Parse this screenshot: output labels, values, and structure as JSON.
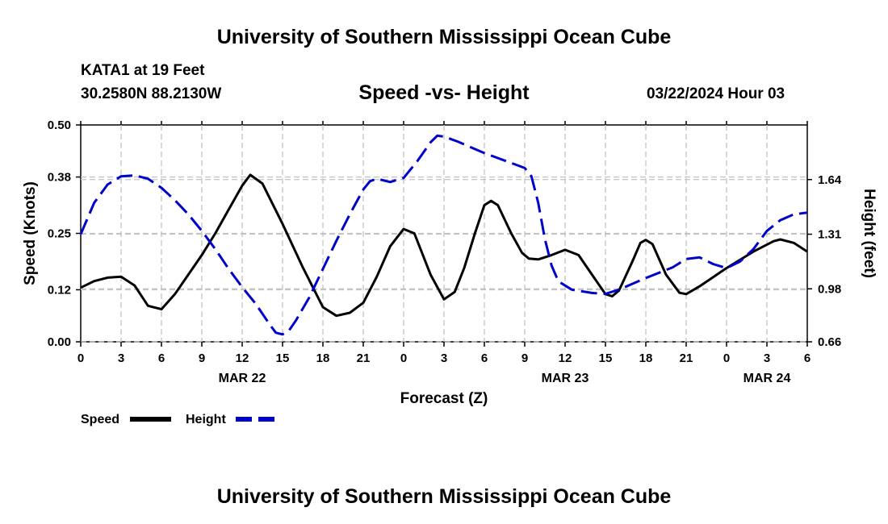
{
  "header": {
    "title": "University of Southern Mississippi Ocean Cube",
    "station": "KATA1 at 19 Feet",
    "coords": "30.2580N  88.2130W",
    "chart_title": "Speed -vs- Height",
    "datetime": "03/22/2024 Hour 03"
  },
  "footer": {
    "title": "University of Southern Mississippi Ocean Cube"
  },
  "chart_data": {
    "type": "line",
    "title": "Speed -vs- Height",
    "xlabel": "Forecast (Z)",
    "ylabel": "Speed (Knots)",
    "y2label": "Height (feet)",
    "xlim": [
      0,
      54
    ],
    "ylim": [
      0,
      0.5
    ],
    "y2lim": [
      0.66,
      1.97
    ],
    "x_ticks": [
      0,
      3,
      6,
      9,
      12,
      15,
      18,
      21,
      24,
      27,
      30,
      33,
      36,
      39,
      42,
      45,
      48,
      51,
      54
    ],
    "x_tick_labels": [
      "0",
      "3",
      "6",
      "9",
      "12",
      "15",
      "18",
      "21",
      "0",
      "3",
      "6",
      "9",
      "12",
      "15",
      "18",
      "21",
      "0",
      "3",
      "6"
    ],
    "date_labels": [
      {
        "x": 12,
        "label": "MAR 22"
      },
      {
        "x": 36,
        "label": "MAR 23"
      },
      {
        "x": 51,
        "label": "MAR 24"
      }
    ],
    "y_ticks": [
      0,
      0.12,
      0.25,
      0.38,
      0.5
    ],
    "y_tick_labels": [
      "0.00",
      "0.12",
      "0.25",
      "0.38",
      "0.50"
    ],
    "y2_ticks": [
      0.66,
      0.98,
      1.31,
      1.64
    ],
    "y2_tick_labels": [
      "0.66",
      "0.98",
      "1.31",
      "1.64"
    ],
    "grid": true,
    "legend_position": "bottom-left",
    "series": [
      {
        "name": "Speed",
        "axis": "left",
        "color": "#000000",
        "dash": "solid",
        "points": [
          [
            0,
            0.125
          ],
          [
            1,
            0.14
          ],
          [
            2,
            0.148
          ],
          [
            3,
            0.15
          ],
          [
            4,
            0.13
          ],
          [
            5,
            0.083
          ],
          [
            6,
            0.075
          ],
          [
            7,
            0.11
          ],
          [
            8,
            0.155
          ],
          [
            9,
            0.2
          ],
          [
            10,
            0.25
          ],
          [
            11,
            0.305
          ],
          [
            12,
            0.36
          ],
          [
            12.6,
            0.385
          ],
          [
            13.5,
            0.365
          ],
          [
            15,
            0.272
          ],
          [
            16.5,
            0.172
          ],
          [
            18,
            0.08
          ],
          [
            19,
            0.06
          ],
          [
            20,
            0.067
          ],
          [
            21,
            0.09
          ],
          [
            22,
            0.15
          ],
          [
            23,
            0.22
          ],
          [
            24,
            0.26
          ],
          [
            24.8,
            0.25
          ],
          [
            26,
            0.155
          ],
          [
            27,
            0.098
          ],
          [
            27.8,
            0.115
          ],
          [
            28.5,
            0.17
          ],
          [
            29.3,
            0.25
          ],
          [
            30,
            0.315
          ],
          [
            30.5,
            0.325
          ],
          [
            31,
            0.315
          ],
          [
            32,
            0.25
          ],
          [
            32.8,
            0.205
          ],
          [
            33.3,
            0.192
          ],
          [
            34,
            0.19
          ],
          [
            35,
            0.2
          ],
          [
            36,
            0.212
          ],
          [
            37,
            0.2
          ],
          [
            38,
            0.155
          ],
          [
            39,
            0.11
          ],
          [
            39.5,
            0.105
          ],
          [
            40,
            0.118
          ],
          [
            41,
            0.185
          ],
          [
            41.6,
            0.228
          ],
          [
            42,
            0.235
          ],
          [
            42.5,
            0.225
          ],
          [
            43.5,
            0.155
          ],
          [
            44.5,
            0.113
          ],
          [
            45,
            0.11
          ],
          [
            46,
            0.128
          ],
          [
            48,
            0.17
          ],
          [
            50,
            0.208
          ],
          [
            51.5,
            0.232
          ],
          [
            52,
            0.236
          ],
          [
            53,
            0.228
          ],
          [
            54,
            0.208
          ]
        ]
      },
      {
        "name": "Height",
        "axis": "right",
        "color": "#0000cc",
        "dash": "dashed",
        "points": [
          [
            0,
            1.31
          ],
          [
            1,
            1.5
          ],
          [
            2,
            1.61
          ],
          [
            3,
            1.66
          ],
          [
            4,
            1.665
          ],
          [
            5,
            1.645
          ],
          [
            6,
            1.59
          ],
          [
            7,
            1.515
          ],
          [
            8,
            1.43
          ],
          [
            9,
            1.33
          ],
          [
            10,
            1.22
          ],
          [
            11,
            1.1
          ],
          [
            12,
            0.99
          ],
          [
            13,
            0.89
          ],
          [
            14,
            0.77
          ],
          [
            14.5,
            0.715
          ],
          [
            15,
            0.705
          ],
          [
            15.5,
            0.73
          ],
          [
            16,
            0.79
          ],
          [
            17,
            0.93
          ],
          [
            18,
            1.1
          ],
          [
            19,
            1.27
          ],
          [
            20,
            1.43
          ],
          [
            21,
            1.58
          ],
          [
            21.5,
            1.63
          ],
          [
            22,
            1.645
          ],
          [
            23,
            1.625
          ],
          [
            24,
            1.65
          ],
          [
            25,
            1.75
          ],
          [
            26,
            1.865
          ],
          [
            26.5,
            1.905
          ],
          [
            27,
            1.9
          ],
          [
            28,
            1.87
          ],
          [
            30,
            1.8
          ],
          [
            32,
            1.74
          ],
          [
            33,
            1.71
          ],
          [
            33.5,
            1.66
          ],
          [
            34,
            1.5
          ],
          [
            34.5,
            1.28
          ],
          [
            35,
            1.12
          ],
          [
            35.5,
            1.025
          ],
          [
            36.5,
            0.975
          ],
          [
            38,
            0.955
          ],
          [
            39,
            0.95
          ],
          [
            40,
            0.975
          ],
          [
            42,
            1.045
          ],
          [
            44,
            1.11
          ],
          [
            45,
            1.16
          ],
          [
            46,
            1.17
          ],
          [
            47,
            1.13
          ],
          [
            48,
            1.105
          ],
          [
            49,
            1.145
          ],
          [
            50,
            1.22
          ],
          [
            51,
            1.33
          ],
          [
            52,
            1.395
          ],
          [
            53,
            1.43
          ],
          [
            54,
            1.44
          ]
        ]
      }
    ]
  }
}
